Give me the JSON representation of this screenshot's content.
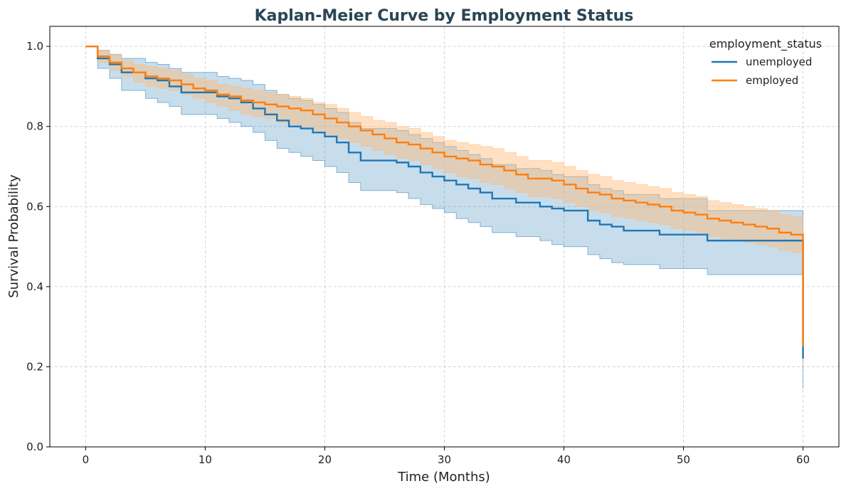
{
  "chart_data": {
    "type": "line",
    "step": true,
    "title": "Kaplan-Meier Curve by Employment Status",
    "xlabel": "Time (Months)",
    "ylabel": "Survival Probability",
    "xlim": [
      -3,
      63
    ],
    "ylim": [
      0,
      1.05
    ],
    "xticks": [
      0,
      10,
      20,
      30,
      40,
      50,
      60
    ],
    "yticks": [
      0.0,
      0.2,
      0.4,
      0.6,
      0.8,
      1.0
    ],
    "xtick_labels": [
      "0",
      "10",
      "20",
      "30",
      "40",
      "50",
      "60"
    ],
    "ytick_labels": [
      "0.0",
      "0.2",
      "0.4",
      "0.6",
      "0.8",
      "1.0"
    ],
    "grid": true,
    "legend": {
      "title": "employment_status",
      "position": "top-right"
    },
    "series": [
      {
        "name": "unemployed",
        "color": "#1f77b4",
        "band_color": "#1f77b4",
        "x": [
          0,
          1,
          2,
          3,
          5,
          6,
          7,
          8,
          11,
          12,
          13,
          14,
          15,
          16,
          17,
          18,
          19,
          20,
          21,
          22,
          23,
          26,
          27,
          28,
          29,
          30,
          31,
          32,
          33,
          34,
          36,
          38,
          39,
          40,
          42,
          43,
          44,
          45,
          48,
          52,
          60,
          60
        ],
        "y": [
          1.0,
          0.97,
          0.955,
          0.935,
          0.92,
          0.915,
          0.9,
          0.885,
          0.875,
          0.87,
          0.86,
          0.845,
          0.83,
          0.815,
          0.8,
          0.795,
          0.785,
          0.775,
          0.76,
          0.735,
          0.715,
          0.71,
          0.7,
          0.685,
          0.675,
          0.665,
          0.655,
          0.645,
          0.635,
          0.62,
          0.61,
          0.6,
          0.595,
          0.59,
          0.565,
          0.555,
          0.55,
          0.54,
          0.53,
          0.515,
          0.515,
          0.22
        ],
        "ci_lower": [
          1.0,
          0.945,
          0.92,
          0.89,
          0.87,
          0.86,
          0.85,
          0.83,
          0.82,
          0.81,
          0.8,
          0.785,
          0.765,
          0.745,
          0.735,
          0.725,
          0.715,
          0.7,
          0.685,
          0.66,
          0.64,
          0.635,
          0.62,
          0.605,
          0.595,
          0.585,
          0.57,
          0.56,
          0.55,
          0.535,
          0.525,
          0.515,
          0.505,
          0.5,
          0.48,
          0.47,
          0.46,
          0.455,
          0.445,
          0.43,
          0.43,
          0.145
        ],
        "ci_upper": [
          1.0,
          0.99,
          0.98,
          0.97,
          0.96,
          0.955,
          0.945,
          0.935,
          0.925,
          0.92,
          0.915,
          0.905,
          0.89,
          0.88,
          0.87,
          0.865,
          0.855,
          0.845,
          0.835,
          0.81,
          0.795,
          0.79,
          0.78,
          0.77,
          0.76,
          0.75,
          0.74,
          0.73,
          0.72,
          0.705,
          0.695,
          0.69,
          0.68,
          0.675,
          0.655,
          0.645,
          0.64,
          0.63,
          0.62,
          0.59,
          0.59,
          0.3
        ]
      },
      {
        "name": "employed",
        "color": "#ff7f0e",
        "band_color": "#ffbb78",
        "x": [
          0,
          1,
          2,
          3,
          4,
          5,
          6,
          7,
          8,
          9,
          10,
          11,
          12,
          13,
          14,
          15,
          16,
          17,
          18,
          19,
          20,
          21,
          22,
          23,
          24,
          25,
          26,
          27,
          28,
          29,
          30,
          31,
          32,
          33,
          34,
          35,
          36,
          37,
          39,
          40,
          41,
          42,
          43,
          44,
          45,
          46,
          47,
          48,
          49,
          50,
          51,
          52,
          53,
          54,
          55,
          56,
          57,
          58,
          59,
          60,
          60
        ],
        "y": [
          1.0,
          0.975,
          0.96,
          0.945,
          0.935,
          0.925,
          0.92,
          0.915,
          0.905,
          0.895,
          0.89,
          0.88,
          0.875,
          0.865,
          0.86,
          0.855,
          0.85,
          0.845,
          0.84,
          0.83,
          0.82,
          0.81,
          0.8,
          0.79,
          0.78,
          0.77,
          0.76,
          0.755,
          0.745,
          0.735,
          0.725,
          0.72,
          0.715,
          0.705,
          0.7,
          0.69,
          0.68,
          0.67,
          0.665,
          0.655,
          0.645,
          0.635,
          0.63,
          0.62,
          0.615,
          0.61,
          0.605,
          0.6,
          0.59,
          0.585,
          0.58,
          0.57,
          0.565,
          0.56,
          0.555,
          0.55,
          0.545,
          0.535,
          0.53,
          0.525,
          0.25
        ],
        "ci_lower": [
          1.0,
          0.96,
          0.94,
          0.925,
          0.91,
          0.9,
          0.895,
          0.89,
          0.88,
          0.87,
          0.86,
          0.85,
          0.84,
          0.83,
          0.825,
          0.82,
          0.81,
          0.805,
          0.8,
          0.79,
          0.78,
          0.77,
          0.76,
          0.75,
          0.74,
          0.73,
          0.72,
          0.715,
          0.705,
          0.695,
          0.685,
          0.675,
          0.67,
          0.66,
          0.655,
          0.645,
          0.635,
          0.625,
          0.62,
          0.61,
          0.6,
          0.59,
          0.585,
          0.575,
          0.57,
          0.565,
          0.56,
          0.555,
          0.545,
          0.54,
          0.535,
          0.525,
          0.52,
          0.515,
          0.51,
          0.505,
          0.5,
          0.49,
          0.485,
          0.48,
          0.2
        ],
        "ci_upper": [
          1.0,
          0.99,
          0.98,
          0.965,
          0.955,
          0.95,
          0.945,
          0.94,
          0.93,
          0.92,
          0.915,
          0.905,
          0.9,
          0.895,
          0.89,
          0.885,
          0.88,
          0.875,
          0.87,
          0.86,
          0.855,
          0.845,
          0.835,
          0.825,
          0.815,
          0.81,
          0.8,
          0.795,
          0.785,
          0.775,
          0.765,
          0.76,
          0.755,
          0.75,
          0.745,
          0.735,
          0.725,
          0.715,
          0.71,
          0.7,
          0.69,
          0.68,
          0.675,
          0.665,
          0.66,
          0.655,
          0.65,
          0.645,
          0.635,
          0.63,
          0.625,
          0.615,
          0.61,
          0.605,
          0.6,
          0.595,
          0.59,
          0.58,
          0.575,
          0.57,
          0.3
        ]
      }
    ]
  }
}
